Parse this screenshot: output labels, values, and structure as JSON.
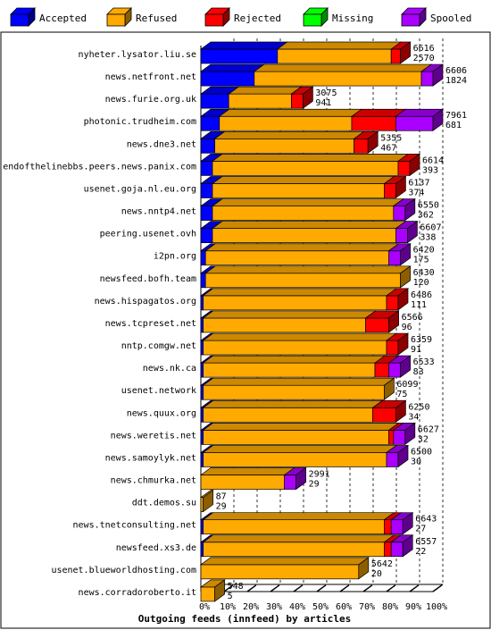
{
  "chart_data": {
    "type": "bar",
    "stacked": true,
    "orientation": "horizontal",
    "xlabel": "Outgoing feeds (innfeed) by articles",
    "x_ticks": [
      "0%",
      "10%",
      "20%",
      "30%",
      "40%",
      "50%",
      "60%",
      "70%",
      "80%",
      "90%",
      "100%"
    ],
    "xlim": [
      0,
      100
    ],
    "grid": "vertical dashed",
    "legend_position": "top",
    "series": [
      {
        "name": "Accepted",
        "color": "#0000ff"
      },
      {
        "name": "Refused",
        "color": "#ffaa00"
      },
      {
        "name": "Rejected",
        "color": "#ff0000"
      },
      {
        "name": "Missing",
        "color": "#00ff00"
      },
      {
        "name": "Spooled",
        "color": "#aa00ff"
      }
    ],
    "rows": [
      {
        "label": "nyheter.lysator.liu.se",
        "offered": "6616",
        "accepted": "2570",
        "pct": [
          33,
          49,
          4,
          0,
          0
        ]
      },
      {
        "label": "news.netfront.net",
        "offered": "6606",
        "accepted": "1824",
        "pct": [
          23,
          72,
          0,
          0,
          5
        ]
      },
      {
        "label": "news.furie.org.uk",
        "offered": "3075",
        "accepted": "941",
        "pct": [
          12,
          27,
          5,
          0,
          0
        ]
      },
      {
        "label": "photonic.trudheim.com",
        "offered": "7961",
        "accepted": "681",
        "pct": [
          8,
          57,
          19,
          0,
          16
        ]
      },
      {
        "label": "news.dne3.net",
        "offered": "5355",
        "accepted": "467",
        "pct": [
          6,
          60,
          6,
          0,
          0
        ]
      },
      {
        "label": "endofthelinebbs.peers.news.panix.com",
        "offered": "6614",
        "accepted": "393",
        "pct": [
          5,
          80,
          5,
          0,
          0
        ]
      },
      {
        "label": "usenet.goja.nl.eu.org",
        "offered": "6137",
        "accepted": "374",
        "pct": [
          5,
          74,
          5,
          0,
          0
        ]
      },
      {
        "label": "news.nntp4.net",
        "offered": "6550",
        "accepted": "362",
        "pct": [
          5,
          78,
          0,
          0,
          5
        ]
      },
      {
        "label": "peering.usenet.ovh",
        "offered": "6607",
        "accepted": "338",
        "pct": [
          5,
          79,
          0,
          0,
          5
        ]
      },
      {
        "label": "i2pn.org",
        "offered": "6420",
        "accepted": "175",
        "pct": [
          2,
          79,
          0,
          0,
          5
        ]
      },
      {
        "label": "newsfeed.bofh.team",
        "offered": "6430",
        "accepted": "120",
        "pct": [
          2,
          84,
          0,
          0,
          0
        ]
      },
      {
        "label": "news.hispagatos.org",
        "offered": "6486",
        "accepted": "111",
        "pct": [
          1,
          79,
          5,
          0,
          0
        ]
      },
      {
        "label": "news.tcpreset.net",
        "offered": "6566",
        "accepted": "96",
        "pct": [
          1,
          70,
          10,
          0,
          0
        ]
      },
      {
        "label": "nntp.comgw.net",
        "offered": "6359",
        "accepted": "91",
        "pct": [
          1,
          79,
          5,
          0,
          0
        ]
      },
      {
        "label": "news.nk.ca",
        "offered": "6533",
        "accepted": "83",
        "pct": [
          1,
          74,
          6,
          0,
          5
        ]
      },
      {
        "label": "usenet.network",
        "offered": "6099",
        "accepted": "75",
        "pct": [
          1,
          78,
          0,
          0,
          0
        ]
      },
      {
        "label": "news.quux.org",
        "offered": "6250",
        "accepted": "34",
        "pct": [
          1,
          73,
          10,
          0,
          0
        ]
      },
      {
        "label": "news.weretis.net",
        "offered": "6627",
        "accepted": "32",
        "pct": [
          1,
          80,
          2,
          0,
          5
        ]
      },
      {
        "label": "news.samoylyk.net",
        "offered": "6500",
        "accepted": "30",
        "pct": [
          1,
          79,
          0,
          0,
          5
        ]
      },
      {
        "label": "news.chmurka.net",
        "offered": "2991",
        "accepted": "29",
        "pct": [
          0,
          36,
          0,
          0,
          5
        ]
      },
      {
        "label": "ddt.demos.su",
        "offered": "87",
        "accepted": "29",
        "pct": [
          0,
          1,
          0,
          0,
          0
        ]
      },
      {
        "label": "news.tnetconsulting.net",
        "offered": "6643",
        "accepted": "27",
        "pct": [
          1,
          78,
          3,
          0,
          5
        ]
      },
      {
        "label": "newsfeed.xs3.de",
        "offered": "6557",
        "accepted": "22",
        "pct": [
          1,
          78,
          3,
          0,
          5
        ]
      },
      {
        "label": "usenet.blueworldhosting.com",
        "offered": "5642",
        "accepted": "20",
        "pct": [
          0,
          68,
          0,
          0,
          0
        ]
      },
      {
        "label": "news.corradoroberto.it",
        "offered": "548",
        "accepted": "5",
        "pct": [
          0,
          6,
          0,
          0,
          0
        ]
      }
    ]
  }
}
